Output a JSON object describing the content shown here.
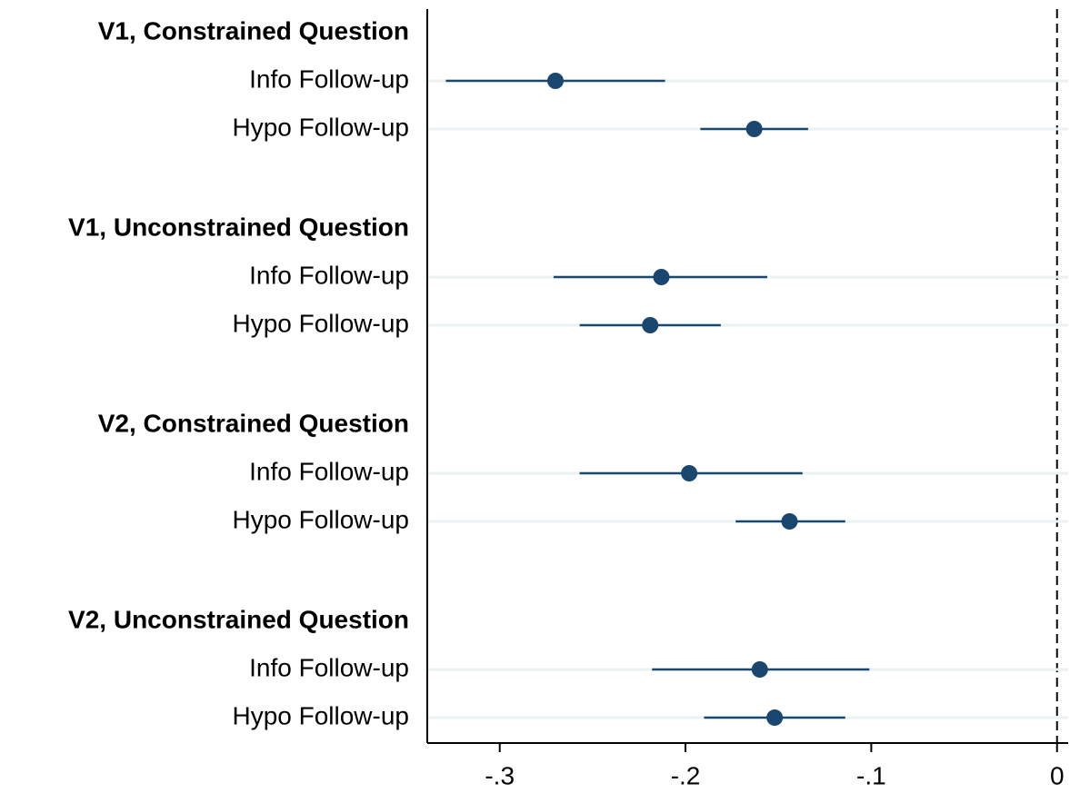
{
  "chart_data": {
    "type": "dot-whisker",
    "color": "#1a476f",
    "grid": true,
    "reference_line": 0,
    "xlim": [
      -0.339,
      0.006
    ],
    "xticks": [
      {
        "value": -0.3,
        "label": "-.3"
      },
      {
        "value": -0.2,
        "label": "-.2"
      },
      {
        "value": -0.1,
        "label": "-.1"
      },
      0
    ],
    "groups": [
      {
        "name": "V1, Constrained Question",
        "categories": [
          "Info Follow-up",
          "Hypo Follow-up"
        ],
        "values": [
          -0.27,
          -0.163
        ],
        "lower": [
          -0.329,
          -0.192
        ],
        "upper": [
          -0.211,
          -0.134
        ]
      },
      {
        "name": "V1, Unconstrained Question",
        "categories": [
          "Info Follow-up",
          "Hypo Follow-up"
        ],
        "values": [
          -0.213,
          -0.219
        ],
        "lower": [
          -0.271,
          -0.257
        ],
        "upper": [
          -0.156,
          -0.181
        ]
      },
      {
        "name": "V2, Constrained Question",
        "categories": [
          "Info Follow-up",
          "Hypo Follow-up"
        ],
        "values": [
          -0.198,
          -0.144
        ],
        "lower": [
          -0.257,
          -0.173
        ],
        "upper": [
          -0.137,
          -0.114
        ]
      },
      {
        "name": "V2, Unconstrained Question",
        "categories": [
          "Info Follow-up",
          "Hypo Follow-up"
        ],
        "values": [
          -0.16,
          -0.152
        ],
        "lower": [
          -0.218,
          -0.19
        ],
        "upper": [
          -0.101,
          -0.114
        ]
      }
    ]
  }
}
